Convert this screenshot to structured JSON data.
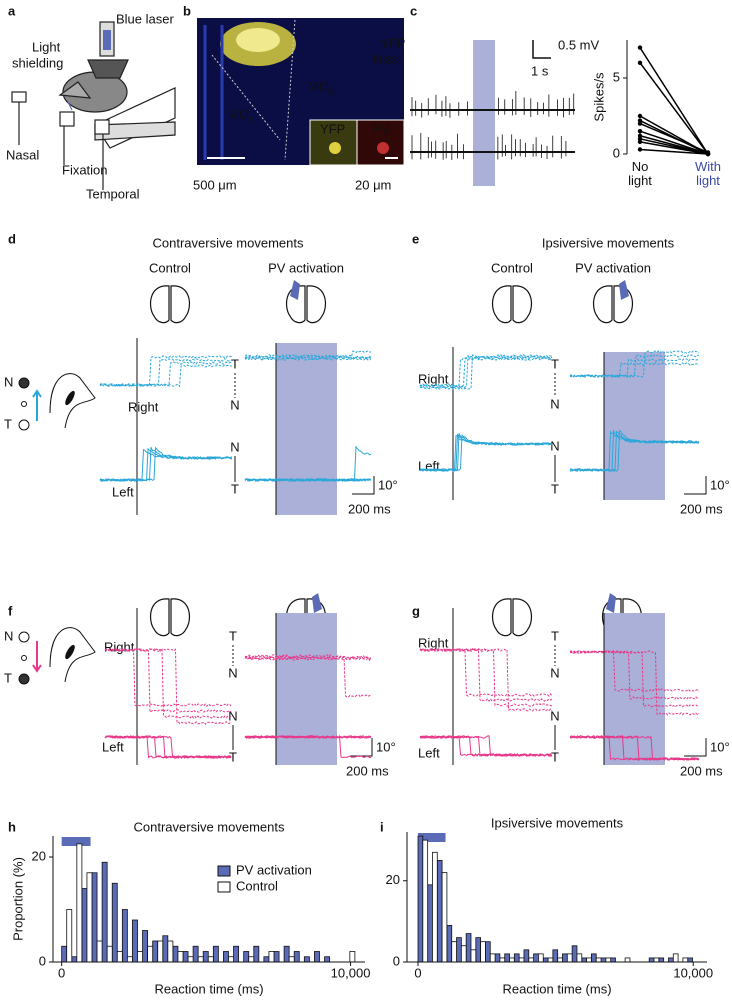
{
  "panel_letters": [
    "a",
    "b",
    "c",
    "d",
    "e",
    "f",
    "g",
    "h",
    "i"
  ],
  "a": {
    "blue_laser": "Blue laser",
    "light_shielding": [
      "Light",
      "shielding"
    ],
    "nasal": "Nasal",
    "fixation": "Fixation",
    "temporal": "Temporal"
  },
  "b": {
    "yfp": "YFP",
    "nissl": "Nissl",
    "mos": {
      "main": "MO",
      "sub": "s"
    },
    "mop": {
      "main": "MO",
      "sub": "p"
    },
    "scale_left": "500 μm",
    "scale_right": "20 μm",
    "inset": [
      "YFP",
      "PV"
    ]
  },
  "c": {
    "scale_voltage": "0.5 mV",
    "scale_time": "1 s"
  },
  "d": {
    "title": "Contraversive movements",
    "control": "Control",
    "pv_activation": "PV activation",
    "right": "Right",
    "left": "Left",
    "arrows": [
      "T",
      "N",
      "N",
      "T"
    ],
    "scale_deg": "10°",
    "scale_time": "200 ms",
    "eye": [
      "N",
      "T"
    ]
  },
  "e": {
    "title": "Ipsiversive movements",
    "control": "Control",
    "pv_activation": "PV activation",
    "right": "Right",
    "left": "Left",
    "arrows": [
      "T",
      "N",
      "N",
      "T"
    ],
    "scale_deg": "10°",
    "scale_time": "200 ms"
  },
  "f": {
    "right": "Right",
    "left": "Left",
    "arrows": [
      "T",
      "N",
      "N",
      "T"
    ],
    "scale_deg": "10°",
    "scale_time": "200 ms",
    "eye": [
      "N",
      "T"
    ]
  },
  "g": {
    "right": "Right",
    "left": "Left",
    "arrows": [
      "T",
      "N",
      "N",
      "T"
    ],
    "scale_deg": "10°",
    "scale_time": "200 ms"
  },
  "chart_data": [
    {
      "type": "line",
      "y_label": "Spikes/s",
      "categories": [
        "No light",
        "With light"
      ],
      "category_colors": [
        "#111111",
        "#3b4aa0"
      ],
      "color": "#000000",
      "series": [
        {
          "values": [
            7,
            0
          ]
        },
        {
          "values": [
            6,
            0
          ]
        },
        {
          "values": [
            2.5,
            0
          ]
        },
        {
          "values": [
            2.2,
            0
          ]
        },
        {
          "values": [
            2,
            0.1
          ]
        },
        {
          "values": [
            1.5,
            0
          ]
        },
        {
          "values": [
            1.2,
            0
          ]
        },
        {
          "values": [
            1,
            0
          ]
        },
        {
          "values": [
            0.8,
            0
          ]
        },
        {
          "values": [
            0.3,
            0
          ]
        }
      ],
      "ylim": [
        0,
        7.5
      ],
      "yticks": [
        0,
        5
      ]
    },
    {
      "type": "histogram",
      "title": "Contraversive movements",
      "y_label": "Proportion (%)",
      "x_label": "Reaction time (ms)",
      "bins": [
        0,
        350,
        700,
        1050,
        1400,
        1750,
        2100,
        2450,
        2800,
        3150,
        3500,
        3850,
        4200,
        4550,
        4900,
        5250,
        5600,
        5950,
        6300,
        6650,
        7000,
        7350,
        7700,
        8050,
        8400,
        8750,
        9100,
        9450,
        9800,
        10150,
        10500
      ],
      "series": [
        {
          "name": "PV activation",
          "color": "#5b6bb5",
          "values": [
            3,
            1,
            14,
            17,
            19,
            15,
            10,
            8,
            6,
            4,
            5,
            3,
            2,
            3,
            2,
            3,
            2,
            3,
            2,
            3,
            1,
            2,
            3,
            2,
            1,
            2,
            1,
            0,
            0,
            0
          ]
        },
        {
          "name": "Control",
          "color": "#ffffff",
          "values": [
            10,
            22.5,
            17,
            4,
            3,
            2,
            1,
            2,
            3,
            4,
            4,
            2,
            1,
            1,
            1,
            0,
            1,
            0,
            1,
            0,
            2,
            0,
            1,
            0,
            0,
            0,
            0,
            0,
            2,
            0
          ]
        }
      ],
      "xlim": [
        -300,
        10500
      ],
      "ylim": [
        0,
        24
      ],
      "xticks": [
        0,
        {
          "value": 10000,
          "label": "10,000"
        }
      ],
      "yticks": [
        0,
        20
      ]
    },
    {
      "type": "histogram",
      "title": "Ipsiversive movements",
      "x_label": "Reaction time (ms)",
      "bins": [
        0,
        350,
        700,
        1050,
        1400,
        1750,
        2100,
        2450,
        2800,
        3150,
        3500,
        3850,
        4200,
        4550,
        4900,
        5250,
        5600,
        5950,
        6300,
        6650,
        7000,
        7350,
        7700,
        8050,
        8400,
        8750,
        9100,
        9450,
        9800,
        10150,
        10500
      ],
      "series": [
        {
          "color": "#5b6bb5",
          "values": [
            31,
            19,
            25,
            9,
            6,
            7,
            6,
            5,
            2,
            2,
            2,
            3,
            2,
            1,
            3,
            2,
            4,
            1,
            2,
            1,
            1,
            0,
            0,
            0,
            1,
            1,
            1,
            0,
            1,
            0
          ]
        },
        {
          "color": "#ffffff",
          "values": [
            30,
            27,
            22,
            5,
            4,
            3,
            5,
            2,
            1,
            1,
            1,
            1,
            2,
            1,
            1,
            2,
            2,
            1,
            1,
            1,
            0,
            1,
            0,
            0,
            1,
            0,
            2,
            1,
            0,
            0
          ]
        }
      ],
      "xlim": [
        -400,
        10500
      ],
      "ylim": [
        0,
        32
      ],
      "xticks": [
        0,
        {
          "value": 10000,
          "label": "10,000"
        }
      ],
      "yticks": [
        0,
        20
      ]
    }
  ]
}
